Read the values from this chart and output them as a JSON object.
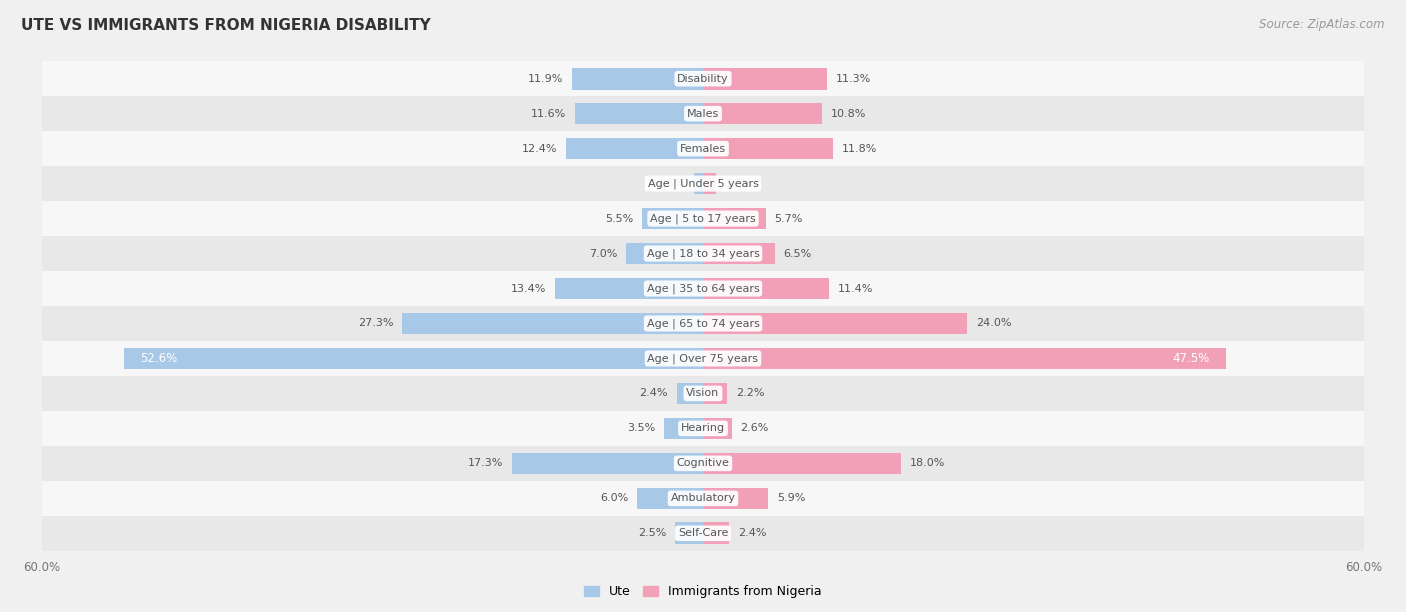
{
  "title": "Ute vs Immigrants from Nigeria Disability",
  "title_display": "UTE VS IMMIGRANTS FROM NIGERIA DISABILITY",
  "source": "Source: ZipAtlas.com",
  "categories": [
    "Disability",
    "Males",
    "Females",
    "Age | Under 5 years",
    "Age | 5 to 17 years",
    "Age | 18 to 34 years",
    "Age | 35 to 64 years",
    "Age | 65 to 74 years",
    "Age | Over 75 years",
    "Vision",
    "Hearing",
    "Cognitive",
    "Ambulatory",
    "Self-Care"
  ],
  "ute_values": [
    11.9,
    11.6,
    12.4,
    0.86,
    5.5,
    7.0,
    13.4,
    27.3,
    52.6,
    2.4,
    3.5,
    17.3,
    6.0,
    2.5
  ],
  "nigeria_values": [
    11.3,
    10.8,
    11.8,
    1.2,
    5.7,
    6.5,
    11.4,
    24.0,
    47.5,
    2.2,
    2.6,
    18.0,
    5.9,
    2.4
  ],
  "ute_label_values": [
    "11.9%",
    "11.6%",
    "12.4%",
    "0.86%",
    "5.5%",
    "7.0%",
    "13.4%",
    "27.3%",
    "52.6%",
    "2.4%",
    "3.5%",
    "17.3%",
    "6.0%",
    "2.5%"
  ],
  "nigeria_label_values": [
    "11.3%",
    "10.8%",
    "11.8%",
    "1.2%",
    "5.7%",
    "6.5%",
    "11.4%",
    "24.0%",
    "47.5%",
    "2.2%",
    "2.6%",
    "18.0%",
    "5.9%",
    "2.4%"
  ],
  "ute_color": "#a8c8e8",
  "nigeria_color": "#f2a0b8",
  "axis_limit": 60.0,
  "bar_height": 0.62,
  "bg_color": "#f0f0f0",
  "row_bg_light": "#f7f7f7",
  "row_bg_dark": "#e8e8e8",
  "label_color": "#555555",
  "legend_ute_label": "Ute",
  "legend_nigeria_label": "Immigrants from Nigeria",
  "over75_idx": 8
}
